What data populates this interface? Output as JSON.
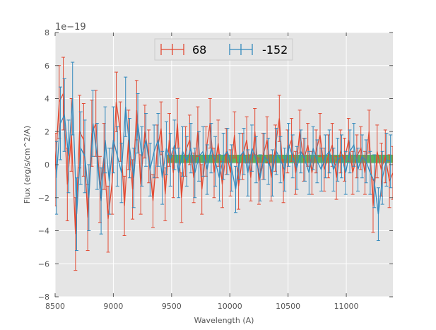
{
  "chart_data": {
    "type": "line",
    "title": "",
    "xlabel": "Wavelength (A)",
    "ylabel": "Flux (erg/s/cm^2/A)",
    "y_offset_label": "1e−19",
    "xlim": [
      8500,
      11400
    ],
    "ylim": [
      -8,
      8
    ],
    "xticks": [
      8500,
      9000,
      9500,
      10000,
      10500,
      11000
    ],
    "xtick_labels": [
      "8500",
      "9000",
      "9500",
      "10000",
      "10500",
      "11000"
    ],
    "yticks": [
      -8,
      -6,
      -4,
      -2,
      0,
      2,
      4,
      6,
      8
    ],
    "ytick_labels": [
      "−8",
      "−6",
      "−4",
      "−2",
      "0",
      "2",
      "4",
      "6",
      "8"
    ],
    "grid": true,
    "legend_position": "top-center",
    "colors": {
      "background": "#e5e5e5",
      "grid": "#ffffff",
      "series_1": "#e24a33",
      "series_2": "#348abd",
      "band": "#2ca02c"
    },
    "band": {
      "x": [
        9460,
        11400
      ],
      "y": [
        0.1,
        0.6
      ]
    },
    "series": [
      {
        "name": "68",
        "color": "#e24a33",
        "x": [
          8500,
          8535,
          8570,
          8605,
          8640,
          8675,
          8710,
          8745,
          8780,
          8815,
          8850,
          8885,
          8920,
          8955,
          8990,
          9025,
          9060,
          9095,
          9130,
          9165,
          9200,
          9235,
          9270,
          9305,
          9340,
          9375,
          9410,
          9445,
          9480,
          9515,
          9550,
          9585,
          9620,
          9655,
          9690,
          9725,
          9760,
          9795,
          9830,
          9865,
          9900,
          9935,
          9970,
          10005,
          10040,
          10075,
          10110,
          10145,
          10180,
          10215,
          10250,
          10285,
          10320,
          10355,
          10390,
          10425,
          10460,
          10495,
          10530,
          10565,
          10600,
          10635,
          10670,
          10705,
          10740,
          10775,
          10810,
          10845,
          10880,
          10915,
          10950,
          10985,
          11020,
          11055,
          11090,
          11125,
          11160,
          11195,
          11230,
          11265,
          11300,
          11335,
          11370,
          11400
        ],
        "values": [
          -0.3,
          3.8,
          4.3,
          -1.2,
          1.8,
          -4.2,
          2.0,
          1.5,
          -3.2,
          1.9,
          2.5,
          -1.5,
          0.5,
          -3.3,
          -1.0,
          3.8,
          2.0,
          -2.5,
          1.5,
          -1.5,
          3.3,
          -1.2,
          2.0,
          0.5,
          -2.2,
          0.8,
          2.2,
          -1.8,
          1.5,
          -0.5,
          2.5,
          -2.0,
          0.8,
          1.5,
          -0.8,
          2.0,
          -1.5,
          0.8,
          2.5,
          -0.5,
          1.3,
          -1.2,
          0.8,
          -0.5,
          1.8,
          -1.3,
          0.5,
          1.5,
          -0.8,
          2.0,
          -1.0,
          0.5,
          1.5,
          -0.8,
          1.0,
          2.8,
          -1.0,
          0.8,
          1.5,
          -0.5,
          2.0,
          0.3,
          1.2,
          -0.5,
          0.8,
          1.8,
          -0.3,
          0.5,
          1.2,
          -0.8,
          0.8,
          0.3,
          1.5,
          -0.5,
          0.5,
          1.0,
          -0.5,
          2.0,
          -2.5,
          0.8,
          -0.3,
          0.5,
          -1.0,
          -0.5
        ],
        "errors": [
          2.2,
          2.2,
          2.2,
          2.2,
          2.2,
          2.2,
          2.2,
          2.2,
          2.0,
          2.0,
          2.0,
          2.0,
          2.0,
          2.0,
          2.0,
          1.8,
          1.8,
          1.8,
          1.8,
          1.8,
          1.8,
          1.8,
          1.6,
          1.6,
          1.6,
          1.6,
          1.6,
          1.6,
          1.6,
          1.5,
          1.5,
          1.5,
          1.5,
          1.5,
          1.5,
          1.5,
          1.5,
          1.5,
          1.5,
          1.5,
          1.4,
          1.4,
          1.4,
          1.4,
          1.4,
          1.4,
          1.4,
          1.4,
          1.4,
          1.4,
          1.4,
          1.4,
          1.4,
          1.4,
          1.4,
          1.4,
          1.3,
          1.3,
          1.3,
          1.3,
          1.3,
          1.3,
          1.3,
          1.3,
          1.3,
          1.3,
          1.3,
          1.3,
          1.3,
          1.3,
          1.3,
          1.3,
          1.3,
          1.3,
          1.3,
          1.3,
          1.3,
          1.3,
          1.6,
          1.6,
          1.6,
          1.6,
          1.6,
          1.6
        ]
      },
      {
        "name": "-152",
        "color": "#348abd",
        "x": [
          8510,
          8545,
          8580,
          8615,
          8650,
          8685,
          8720,
          8755,
          8790,
          8825,
          8860,
          8895,
          8930,
          8965,
          9000,
          9035,
          9070,
          9105,
          9140,
          9175,
          9210,
          9245,
          9280,
          9315,
          9350,
          9385,
          9420,
          9455,
          9490,
          9525,
          9560,
          9595,
          9630,
          9665,
          9700,
          9735,
          9770,
          9805,
          9840,
          9875,
          9910,
          9945,
          9980,
          10015,
          10050,
          10085,
          10120,
          10155,
          10190,
          10225,
          10260,
          10295,
          10330,
          10365,
          10400,
          10435,
          10470,
          10505,
          10540,
          10575,
          10610,
          10645,
          10680,
          10715,
          10750,
          10785,
          10820,
          10855,
          10890,
          10925,
          10960,
          10995,
          11030,
          11065,
          11100,
          11135,
          11170,
          11205,
          11240,
          11275,
          11310,
          11345,
          11380
        ],
        "values": [
          -0.8,
          2.5,
          3.0,
          0.5,
          4.0,
          -3.0,
          1.0,
          0.5,
          -2.0,
          2.5,
          0.5,
          -2.2,
          1.5,
          -1.0,
          1.5,
          0.5,
          -0.5,
          3.5,
          1.0,
          -0.8,
          2.5,
          0.5,
          1.5,
          -0.3,
          0.8,
          1.5,
          -0.8,
          1.0,
          0.3,
          1.2,
          -0.5,
          0.8,
          0.2,
          1.0,
          -0.5,
          0.5,
          0.8,
          -0.3,
          1.0,
          0.2,
          -0.8,
          0.5,
          0.8,
          -0.2,
          -1.5,
          0.5,
          0.8,
          -0.5,
          1.0,
          0.3,
          -0.8,
          0.5,
          0.2,
          -0.5,
          0.8,
          0.3,
          -0.3,
          1.2,
          0.5,
          -0.2,
          0.8,
          0.3,
          -0.5,
          1.0,
          0.2,
          -0.3,
          0.5,
          0.8,
          -0.3,
          0.3,
          0.5,
          -0.5,
          0.8,
          1.2,
          -0.3,
          0.5,
          0.2,
          -0.5,
          -1.0,
          -3.0,
          -0.8,
          0.3,
          0.2
        ],
        "errors": [
          2.2,
          2.2,
          2.2,
          2.2,
          2.2,
          2.2,
          2.2,
          2.2,
          2.0,
          2.0,
          2.0,
          2.0,
          2.0,
          2.0,
          2.0,
          1.8,
          1.8,
          1.8,
          1.8,
          1.8,
          1.8,
          1.8,
          1.6,
          1.6,
          1.6,
          1.6,
          1.6,
          1.6,
          1.6,
          1.5,
          1.5,
          1.5,
          1.5,
          1.5,
          1.5,
          1.5,
          1.5,
          1.5,
          1.5,
          1.5,
          1.4,
          1.4,
          1.4,
          1.4,
          1.4,
          1.4,
          1.4,
          1.4,
          1.4,
          1.4,
          1.4,
          1.4,
          1.4,
          1.4,
          1.4,
          1.4,
          1.3,
          1.3,
          1.3,
          1.3,
          1.3,
          1.3,
          1.3,
          1.3,
          1.3,
          1.3,
          1.3,
          1.3,
          1.3,
          1.3,
          1.3,
          1.3,
          1.3,
          1.3,
          1.3,
          1.3,
          1.3,
          1.3,
          1.6,
          1.6,
          1.6,
          1.6,
          1.6
        ]
      }
    ]
  }
}
